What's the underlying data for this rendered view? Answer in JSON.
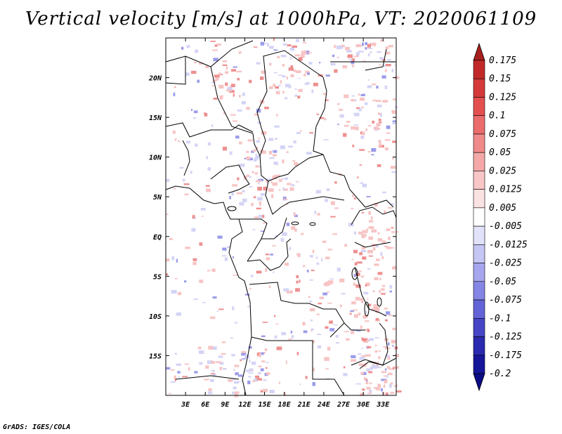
{
  "title": "Vertical velocity [m/s] at 1000hPa, VT: 2020061109",
  "footer": "GrADS: IGES/COLA",
  "map": {
    "lon_range": [
      0,
      35
    ],
    "lat_range": [
      -20,
      25
    ],
    "lat_ticks": [
      {
        "lat": 20,
        "label": "20N"
      },
      {
        "lat": 15,
        "label": "15N"
      },
      {
        "lat": 10,
        "label": "10N"
      },
      {
        "lat": 5,
        "label": "5N"
      },
      {
        "lat": 0,
        "label": "EQ"
      },
      {
        "lat": -5,
        "label": "5S"
      },
      {
        "lat": -10,
        "label": "10S"
      },
      {
        "lat": -15,
        "label": "15S"
      }
    ],
    "lon_ticks": [
      {
        "lon": 3,
        "label": "3E"
      },
      {
        "lon": 6,
        "label": "6E"
      },
      {
        "lon": 9,
        "label": "9E"
      },
      {
        "lon": 12,
        "label": "12E"
      },
      {
        "lon": 15,
        "label": "15E"
      },
      {
        "lon": 18,
        "label": "18E"
      },
      {
        "lon": 21,
        "label": "21E"
      },
      {
        "lon": 24,
        "label": "24E"
      },
      {
        "lon": 27,
        "label": "27E"
      },
      {
        "lon": 30,
        "label": "30E"
      },
      {
        "lon": 33,
        "label": "33E"
      }
    ]
  },
  "colorbar": {
    "labels": [
      "0.175",
      "0.15",
      "0.125",
      "0.1",
      "0.075",
      "0.05",
      "0.025",
      "0.0125",
      "0.005",
      "-0.005",
      "-0.0125",
      "-0.025",
      "-0.05",
      "-0.075",
      "-0.1",
      "-0.125",
      "-0.175",
      "-0.2"
    ],
    "colors": [
      "#a81f1f",
      "#c22a2a",
      "#d53a3a",
      "#e45050",
      "#eb6c6c",
      "#f08a8a",
      "#f4a8a8",
      "#f8c6c6",
      "#fbe2e2",
      "#ffffff",
      "#e2e2fb",
      "#c6c6f5",
      "#a6a6ef",
      "#8585e6",
      "#6363d8",
      "#4545c6",
      "#2a2ab0",
      "#16169a",
      "#0c0c86"
    ],
    "top_color": "#a81f1f",
    "bottom_color": "#0c0c86"
  },
  "colors": {
    "positive_light": "#f7c4c4",
    "positive_mid": "#ee8f8f",
    "negative_light": "#d4d4f6",
    "negative_mid": "#9c9cea"
  }
}
